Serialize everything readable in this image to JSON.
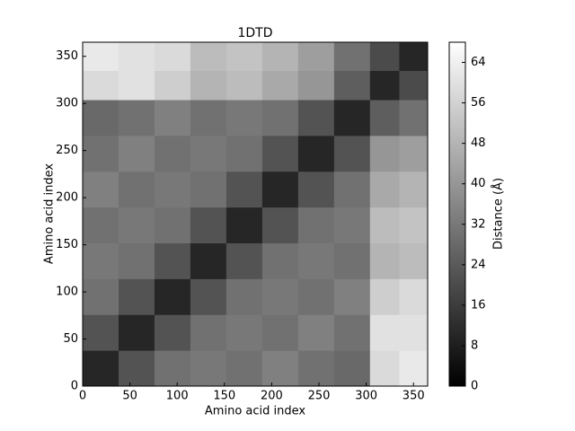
{
  "chart_data": {
    "type": "heatmap",
    "title": "1DTD",
    "x_label": "Amino acid index",
    "y_label": "Amino acid index",
    "xbins": [
      0,
      38,
      76,
      114,
      152,
      190,
      228,
      266,
      304,
      335,
      365
    ],
    "ybins": [
      0,
      38,
      76,
      114,
      152,
      190,
      228,
      266,
      304,
      335,
      365
    ],
    "values": [
      [
        10,
        22,
        30,
        32,
        30,
        34,
        30,
        28,
        58,
        62
      ],
      [
        22,
        10,
        22,
        30,
        32,
        30,
        34,
        30,
        60,
        60
      ],
      [
        30,
        22,
        10,
        22,
        30,
        32,
        30,
        34,
        55,
        58
      ],
      [
        32,
        30,
        22,
        10,
        22,
        30,
        32,
        30,
        48,
        50
      ],
      [
        30,
        32,
        30,
        22,
        10,
        22,
        30,
        32,
        50,
        52
      ],
      [
        34,
        30,
        32,
        30,
        22,
        10,
        22,
        30,
        45,
        48
      ],
      [
        30,
        34,
        30,
        32,
        30,
        22,
        10,
        22,
        40,
        42
      ],
      [
        28,
        30,
        34,
        30,
        32,
        30,
        22,
        10,
        25,
        30
      ],
      [
        58,
        60,
        55,
        48,
        50,
        45,
        40,
        25,
        10,
        20
      ],
      [
        62,
        60,
        58,
        50,
        52,
        48,
        42,
        30,
        20,
        10
      ]
    ],
    "xlim": [
      0,
      365
    ],
    "ylim": [
      0,
      365
    ],
    "xticks": [
      0,
      50,
      100,
      150,
      200,
      250,
      300,
      350
    ],
    "yticks": [
      0,
      50,
      100,
      150,
      200,
      250,
      300,
      350
    ],
    "colormap": "gray",
    "clim": [
      0,
      68
    ],
    "cticks": [
      0,
      8,
      16,
      24,
      32,
      40,
      48,
      56,
      64
    ],
    "colorbar_label": "Distance (Å)"
  }
}
